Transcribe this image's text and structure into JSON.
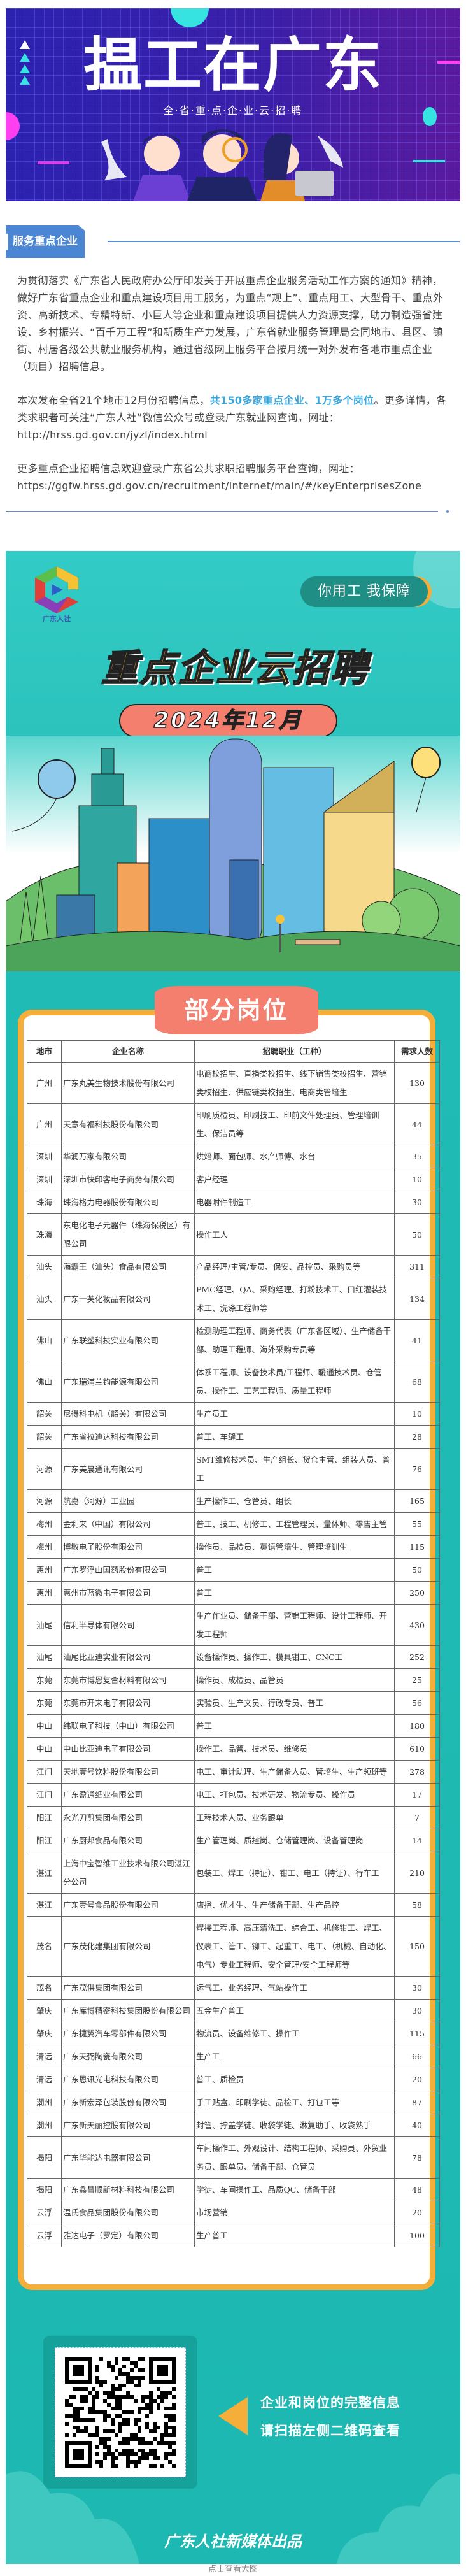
{
  "banner": {
    "title": "揾工在广东",
    "subtitle": "全·省·重·点·企·业·云·招·聘"
  },
  "section": {
    "tag": "服务重点企业"
  },
  "intro": {
    "p1": "为贯彻落实《广东省人民政府办公厅印发关于开展重点企业服务活动工作方案的通知》精神，做好广东省重点企业和重点建设项目用工服务，为重点“规上”、重点用工、大型骨干、重点外资、高新技术、专精特新、小巨人等企业和重点建设项目提供人力资源支撑，助力制造强省建设、乡村振兴、“百千万工程”和新质生产力发展，广东省就业服务管理局会同地市、县区、镇街、村居各级公共就业服务机构，通过省级网上服务平台按月统一对外发布各地市重点企业（项目）招聘信息。",
    "p2_before": "本次发布全省21个地市12月份招聘信息，",
    "p2_highlight": "共150多家重点企业、1万多个岗位",
    "p2_after": "。更多详情，各类求职者可关注“广东人社”微信公众号或登录广东就业网查询，网址：",
    "p2_url": "http://hrss.gd.gov.cn/jyzl/index.html",
    "p3": "更多重点企业招聘信息欢迎登录广东省公共求职招聘服务平台查询，网址：",
    "p3_url": "https://ggfw.hrss.gd.gov.cn/recruitment/internet/main/#/keyEnterprisesZone"
  },
  "poster": {
    "logo_label": "广东人社",
    "slogan": "你用工 我保障",
    "title": "重点企业云招聘",
    "date": "2024年12月",
    "tab": "部分岗位",
    "scan_line1": "企业和岗位的完整信息",
    "scan_line2": "请扫描左侧二维码查看",
    "credit": "广东人社新媒体出品",
    "colors": {
      "teal": "#1cb8b1",
      "orange": "#f6ae3a",
      "coral": "#f47f6e"
    }
  },
  "table": {
    "headers": [
      "地市",
      "企业名称",
      "招聘职业（工种）",
      "需求人数"
    ],
    "rows": [
      [
        "广州",
        "广东丸美生物技术股份有限公司",
        "电商校招生、直播类校招生、线下销售类校招生、营销类校招生、供应链类校招生、电商类管培生",
        "130"
      ],
      [
        "广州",
        "天意有福科技股份有限公司",
        "印刷质检员、印刷技工、印前文件处理员、管理培训生、保洁员等",
        "44"
      ],
      [
        "深圳",
        "华润万家有限公司",
        "烘焙师、面包师、水产师傅、水台",
        "35"
      ],
      [
        "深圳",
        "深圳市快印客电子商务有限公司",
        "客户经理",
        "10"
      ],
      [
        "珠海",
        "珠海格力电器股份有限公司",
        "电器附件制造工",
        "30"
      ],
      [
        "珠海",
        "东电化电子元器件（珠海保税区）有限公司",
        "操作工人",
        "50"
      ],
      [
        "汕头",
        "海霸王（汕头）食品有限公司",
        "产品经理/主管/专员、保安、品控员、采购员等",
        "311"
      ],
      [
        "汕头",
        "广东一芙化妆品有限公司",
        "PMC经理、QA、采购经理、打粉技术工、口红灌装技术工、洗涤工程师等",
        "134"
      ],
      [
        "佛山",
        "广东联塑科技实业有限公司",
        "检测助理工程师、商务代表（广东各区域）、生产储备干部、助理工程师、海外采购专员等",
        "41"
      ],
      [
        "佛山",
        "广东瑞浦兰钧能源有限公司",
        "体系工程师、设备技术员/工程师、暖通技术员、仓管员、操作工、工艺工程师、质量工程师",
        "68"
      ],
      [
        "韶关",
        "尼得科电机（韶关）有限公司",
        "生产员工",
        "10"
      ],
      [
        "韶关",
        "广东省拉迪达科技有限公司",
        "普工、车缝工",
        "28"
      ],
      [
        "河源",
        "广东美晨通讯有限公司",
        "SMT维修技术员、生产组长、货仓主管、组装人员、普工",
        "76"
      ],
      [
        "河源",
        "航嘉（河源）工业园",
        "生产操作工、仓管员、组长",
        "165"
      ],
      [
        "梅州",
        "金利来（中国）有限公司",
        "普工、技工、机修工、工程管理员、量体师、零售主管",
        "55"
      ],
      [
        "梅州",
        "博敏电子股份有限公司",
        "操作员、品检员、英语管培生、管理培训生",
        "115"
      ],
      [
        "惠州",
        "广东罗浮山国药股份有限公司",
        "普工",
        "50"
      ],
      [
        "惠州",
        "惠州市蓝微电子有限公司",
        "普工",
        "250"
      ],
      [
        "汕尾",
        "信利半导体有限公司",
        "生产作业员、储备干部、营销工程师、设计工程师、开发工程师",
        "430"
      ],
      [
        "汕尾",
        "汕尾比亚迪实业有限公司",
        "设备操作员、操作工、模具钳工、CNC工",
        "252"
      ],
      [
        "东莞",
        "东莞市博恩复合材料有限公司",
        "操作员、成检员、品管员",
        "25"
      ],
      [
        "东莞",
        "东莞市开来电子有限公司",
        "实验员、生产文员、行政专员、普工",
        "56"
      ],
      [
        "中山",
        "纬联电子科技（中山）有限公司",
        "普工",
        "180"
      ],
      [
        "中山",
        "中山比亚迪电子有限公司",
        "操作工、品管、技术员、维修员",
        "610"
      ],
      [
        "江门",
        "天地壹号饮料股份有限公司",
        "电工、审计助理、生产储备人员、管培生、生产领班等",
        "278"
      ],
      [
        "江门",
        "广东盈通纸业有限公司",
        "电工、打包员、技术研发、物流专员、操作员",
        "17"
      ],
      [
        "阳江",
        "永光刀剪集团有限公司",
        "工程技术人员、业务跟单",
        "7"
      ],
      [
        "阳江",
        "广东厨邦食品有限公司",
        "生产管理岗、质控岗、仓储管理岗、设备管理岗",
        "14"
      ],
      [
        "湛江",
        "上海中宝智维工业技术有限公司湛江分公司",
        "包装工、焊工（持证）、钳工、电工（持证）、行车工",
        "210"
      ],
      [
        "湛江",
        "广东壹号食品股份有限公司",
        "店播、优才生、生产储备干部、生产品控",
        "58"
      ],
      [
        "茂名",
        "广东茂化建集团有限公司",
        "焊接工程师、高压清洗工、综合工、机修钳工、焊工、仪表工、管工、铆工、起重工、电工、（机械、自动化、电气）专业工程师、安全管理/安全工程师等",
        "150"
      ],
      [
        "茂名",
        "广东茂供集团有限公司",
        "运气工、业务经理、气站操作工",
        "30"
      ],
      [
        "肇庆",
        "广东库博精密科技集团股份有限公司",
        "五金生产普工",
        "30"
      ],
      [
        "肇庆",
        "广东捷翼汽车零部件有限公司",
        "物流员、设备维修工、操作工",
        "115"
      ],
      [
        "清远",
        "广东天弼陶瓷有限公司",
        "生产工",
        "66"
      ],
      [
        "清远",
        "广东恩讯光电科技有限公司",
        "普工、质检员",
        "20"
      ],
      [
        "潮州",
        "广东新宏泽包装股份有限公司",
        "手工贴盒、印刷学徒、品检工、打包工等",
        "87"
      ],
      [
        "潮州",
        "广东新天丽控股有限公司",
        "封管、拧盖学徒、收袋学徒、淋复助手、收袋熟手",
        "40"
      ],
      [
        "揭阳",
        "广东华能达电器有限公司",
        "车间操作工、外观设计、结构工程师、采购员、外贸业务员、跟单员、储备干部、仓管员",
        "78"
      ],
      [
        "揭阳",
        "广东鑫昌顺新材料科技有限公司",
        "学徒、车间操作工、品质QC、储备干部",
        "48"
      ],
      [
        "云浮",
        "温氏食品集团股份有限公司",
        "市场营销",
        "20"
      ],
      [
        "云浮",
        "雅达电子（罗定）有限公司",
        "生产普工",
        "100"
      ]
    ]
  },
  "caption": "点击查看大图"
}
